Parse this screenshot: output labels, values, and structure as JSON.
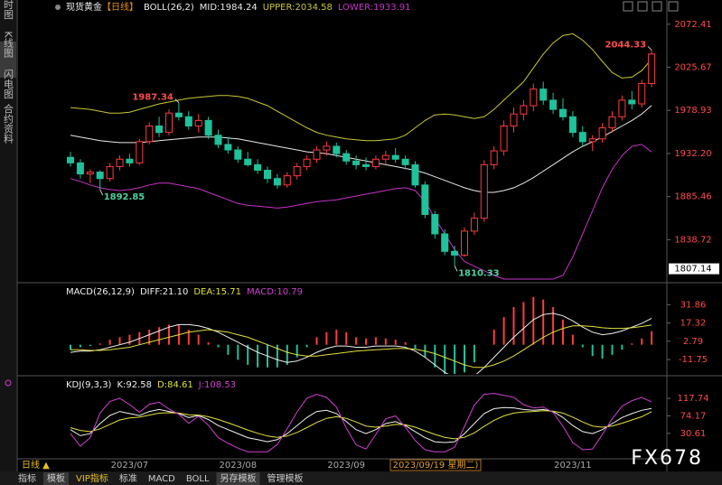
{
  "chart_data": [
    {
      "type": "candlestick",
      "title": "现货黄金",
      "period": "【日线】",
      "indicator": "BOLL(26,2)",
      "categories": [
        null,
        null,
        null,
        null,
        null,
        null,
        "2023/07",
        null,
        null,
        null,
        null,
        null,
        null,
        null,
        null,
        null,
        null,
        "2023/08",
        null,
        null,
        null,
        null,
        null,
        null,
        null,
        null,
        null,
        null,
        "2023/09",
        null,
        null,
        null,
        null,
        null,
        null,
        null,
        null,
        null,
        null,
        null,
        null,
        null,
        null,
        null,
        null,
        null,
        null,
        null,
        null,
        null,
        null,
        "2023/11",
        null,
        null,
        null,
        null,
        null,
        null,
        null,
        null
      ],
      "candles": [
        [
          1928,
          1934,
          1918,
          1922
        ],
        [
          1922,
          1926,
          1905,
          1910
        ],
        [
          1910,
          1915,
          1900,
          1912
        ],
        [
          1912,
          1914,
          1892.85,
          1905
        ],
        [
          1905,
          1922,
          1902,
          1918
        ],
        [
          1918,
          1930,
          1914,
          1926
        ],
        [
          1926,
          1932,
          1918,
          1922
        ],
        [
          1922,
          1948,
          1920,
          1945
        ],
        [
          1945,
          1966,
          1942,
          1962
        ],
        [
          1962,
          1972,
          1950,
          1955
        ],
        [
          1955,
          1980,
          1952,
          1976
        ],
        [
          1976,
          1987.34,
          1968,
          1972
        ],
        [
          1972,
          1978,
          1958,
          1962
        ],
        [
          1962,
          1975,
          1955,
          1968
        ],
        [
          1968,
          1972,
          1948,
          1952
        ],
        [
          1952,
          1958,
          1938,
          1942
        ],
        [
          1942,
          1950,
          1932,
          1936
        ],
        [
          1936,
          1940,
          1922,
          1926
        ],
        [
          1926,
          1934,
          1918,
          1920
        ],
        [
          1920,
          1926,
          1910,
          1914
        ],
        [
          1914,
          1918,
          1900,
          1905
        ],
        [
          1905,
          1910,
          1894,
          1898
        ],
        [
          1898,
          1912,
          1895,
          1908
        ],
        [
          1908,
          1922,
          1904,
          1918
        ],
        [
          1918,
          1930,
          1914,
          1926
        ],
        [
          1926,
          1940,
          1922,
          1936
        ],
        [
          1936,
          1945,
          1930,
          1940
        ],
        [
          1940,
          1944,
          1928,
          1932
        ],
        [
          1932,
          1936,
          1920,
          1924
        ],
        [
          1924,
          1930,
          1915,
          1920
        ],
        [
          1920,
          1928,
          1914,
          1918
        ],
        [
          1918,
          1930,
          1915,
          1926
        ],
        [
          1926,
          1935,
          1920,
          1930
        ],
        [
          1930,
          1938,
          1922,
          1926
        ],
        [
          1926,
          1930,
          1915,
          1920
        ],
        [
          1920,
          1924,
          1895,
          1898
        ],
        [
          1898,
          1902,
          1862,
          1866
        ],
        [
          1866,
          1870,
          1840,
          1845
        ],
        [
          1845,
          1850,
          1822,
          1826
        ],
        [
          1826,
          1832,
          1810.33,
          1822
        ],
        [
          1822,
          1852,
          1820,
          1848
        ],
        [
          1848,
          1868,
          1844,
          1862
        ],
        [
          1862,
          1925,
          1858,
          1920
        ],
        [
          1920,
          1940,
          1915,
          1935
        ],
        [
          1935,
          1968,
          1930,
          1962
        ],
        [
          1962,
          1982,
          1955,
          1975
        ],
        [
          1975,
          1990,
          1968,
          1984
        ],
        [
          1984,
          2008,
          1978,
          2002
        ],
        [
          2002,
          2010,
          1985,
          1990
        ],
        [
          1990,
          1998,
          1975,
          1980
        ],
        [
          1980,
          1992,
          1968,
          1972
        ],
        [
          1972,
          1978,
          1950,
          1955
        ],
        [
          1955,
          1962,
          1940,
          1945
        ],
        [
          1945,
          1952,
          1935,
          1948
        ],
        [
          1948,
          1965,
          1944,
          1960
        ],
        [
          1960,
          1978,
          1955,
          1972
        ],
        [
          1972,
          1995,
          1968,
          1990
        ],
        [
          1990,
          2000,
          1980,
          1986
        ],
        [
          1986,
          2012,
          1982,
          2008
        ],
        [
          2008,
          2044.33,
          2004,
          2040
        ]
      ],
      "up_color": "#ff3b3b",
      "down_color": "#1fc29a",
      "series": [
        {
          "name": "MID:1984.24",
          "color": "#e8e8e8",
          "values": [
            1952,
            1950,
            1948,
            1946,
            1945,
            1944,
            1944,
            1944,
            1945,
            1946,
            1947,
            1948,
            1949,
            1950,
            1950,
            1950,
            1949,
            1948,
            1946,
            1944,
            1942,
            1940,
            1938,
            1936,
            1934,
            1933,
            1932,
            1930,
            1928,
            1926,
            1924,
            1922,
            1920,
            1918,
            1916,
            1914,
            1911,
            1907,
            1903,
            1899,
            1895,
            1892,
            1890,
            1890,
            1892,
            1895,
            1900,
            1906,
            1913,
            1920,
            1927,
            1934,
            1940,
            1945,
            1950,
            1956,
            1962,
            1968,
            1975,
            1984.24
          ]
        },
        {
          "name": "UPPER:2034.58",
          "color": "#c8c832",
          "values": [
            1982,
            1981,
            1980,
            1978,
            1976,
            1976,
            1977,
            1980,
            1983,
            1986,
            1988,
            1990,
            1992,
            1993,
            1994,
            1995,
            1995,
            1994,
            1992,
            1988,
            1984,
            1978,
            1972,
            1966,
            1960,
            1955,
            1952,
            1950,
            1948,
            1947,
            1946,
            1946,
            1947,
            1948,
            1952,
            1960,
            1968,
            1974,
            1975,
            1974,
            1972,
            1970,
            1972,
            1980,
            1990,
            2000,
            2010,
            2025,
            2040,
            2052,
            2060,
            2062,
            2055,
            2045,
            2032,
            2020,
            2014,
            2015,
            2022,
            2034.58
          ]
        },
        {
          "name": "LOWER:1933.91",
          "color": "#c832c8",
          "values": [
            1905,
            1902,
            1898,
            1895,
            1893,
            1892,
            1893,
            1895,
            1898,
            1900,
            1900,
            1898,
            1896,
            1894,
            1890,
            1886,
            1882,
            1878,
            1876,
            1875,
            1874,
            1873,
            1874,
            1876,
            1878,
            1880,
            1881,
            1882,
            1884,
            1886,
            1888,
            1890,
            1892,
            1894,
            1895,
            1892,
            1880,
            1862,
            1845,
            1828,
            1815,
            1810,
            1805,
            1800,
            1796,
            1796,
            1796,
            1796,
            1796,
            1796,
            1800,
            1820,
            1845,
            1870,
            1895,
            1915,
            1930,
            1940,
            1942,
            1933.91
          ]
        }
      ],
      "ylim": [
        1795,
        2081
      ],
      "yticks": [
        2072.41,
        2025.67,
        1978.93,
        {
          "value": 1932.2,
          "label": "1932.20"
        },
        1885.46,
        1838.72
      ],
      "tick_color": "#ff4b4b",
      "extreme_labels": [
        {
          "candle": 59,
          "value": 2044.33,
          "label": "2044.33",
          "color": "#ff4b4b"
        },
        {
          "candle": 11,
          "value": 1987.34,
          "label": "1987.34",
          "color": "#ff4b4b"
        },
        {
          "candle": 3,
          "value": 1892.85,
          "label": "1892.85",
          "color": "#4fd0a0"
        },
        {
          "candle": 39,
          "value": 1810.33,
          "label": "1810.33",
          "color": "#4fd0a0"
        }
      ],
      "ymarker": 1807.14
    },
    {
      "type": "macd",
      "title": "MACD(26,12,9)",
      "histogram": {
        "name": "MACD:10.79",
        "color": "#d040d0",
        "up_color": "#ff3b3b",
        "down_color": "#1fc29a",
        "values": [
          -4,
          -2,
          -1,
          1,
          4,
          6,
          8,
          10,
          12,
          14,
          16,
          16,
          12,
          8,
          2,
          -2,
          -8,
          -12,
          -16,
          -18,
          -18,
          -18,
          -16,
          -10,
          -2,
          6,
          10,
          12,
          10,
          6,
          5,
          6,
          5,
          4,
          2,
          -3,
          -10,
          -18,
          -24,
          -26,
          -22,
          -14,
          0,
          12,
          22,
          30,
          34,
          38,
          36,
          30,
          20,
          8,
          -2,
          -9,
          -11,
          -8,
          -4,
          1,
          5,
          10.79
        ]
      },
      "series": [
        {
          "name": "DIFF:21.10",
          "color": "#f0f0f0",
          "values": [
            -6,
            -5,
            -5,
            -4,
            -2,
            0,
            2,
            5,
            8,
            11,
            14,
            16,
            16,
            15,
            13,
            10,
            6,
            2,
            -2,
            -6,
            -9,
            -12,
            -14,
            -13,
            -10,
            -6,
            -3,
            -1,
            -1,
            -2,
            -2,
            -1,
            -1,
            -1,
            -2,
            -5,
            -10,
            -16,
            -22,
            -26,
            -27,
            -25,
            -18,
            -10,
            -2,
            6,
            13,
            20,
            24,
            25,
            23,
            19,
            14,
            10,
            8,
            9,
            11,
            14,
            17,
            21.1
          ]
        },
        {
          "name": "DEA:15.71",
          "color": "#e0e03a",
          "values": [
            -4,
            -4,
            -4.5,
            -4.5,
            -4,
            -3,
            -2,
            0,
            2,
            4,
            6,
            8,
            10,
            11,
            12,
            11,
            10,
            8,
            6,
            3,
            0,
            -3,
            -6,
            -8,
            -9,
            -9,
            -8,
            -7,
            -6,
            -5,
            -4.5,
            -4,
            -3.5,
            -3,
            -3,
            -3.5,
            -5,
            -7,
            -10,
            -13,
            -16,
            -18,
            -18,
            -16,
            -13,
            -9,
            -4,
            1,
            6,
            10,
            13,
            15,
            15,
            14.5,
            13.5,
            13,
            13,
            13.5,
            14.5,
            15.71
          ]
        }
      ],
      "ylim": [
        -23.2,
        38.6
      ],
      "yticks": [
        31.86,
        17.32,
        2.79,
        -11.75
      ],
      "tick_color": "#ff4b4b"
    },
    {
      "type": "line",
      "title": "KDJ(9,3,3)",
      "series": [
        {
          "name": "K:92.58",
          "color": "#f0f0f0",
          "values": [
            40,
            25,
            30,
            55,
            75,
            85,
            80,
            75,
            85,
            90,
            85,
            80,
            70,
            75,
            65,
            50,
            40,
            30,
            20,
            15,
            10,
            15,
            30,
            50,
            70,
            85,
            88,
            80,
            60,
            40,
            30,
            40,
            55,
            60,
            50,
            35,
            20,
            10,
            8,
            10,
            30,
            55,
            80,
            92,
            95,
            94,
            90,
            88,
            90,
            85,
            70,
            50,
            35,
            30,
            40,
            55,
            70,
            80,
            88,
            92.58
          ]
        },
        {
          "name": "D:84.61",
          "color": "#e0e03a",
          "values": [
            45,
            38,
            35,
            42,
            53,
            64,
            69,
            71,
            76,
            81,
            82,
            81,
            77,
            76,
            72,
            65,
            57,
            48,
            39,
            31,
            24,
            21,
            24,
            33,
            45,
            58,
            68,
            72,
            68,
            59,
            49,
            46,
            49,
            53,
            52,
            46,
            37,
            28,
            21,
            17,
            21,
            32,
            48,
            63,
            74,
            81,
            84,
            85,
            87,
            86,
            81,
            71,
            59,
            49,
            46,
            49,
            56,
            64,
            72,
            84.61
          ]
        },
        {
          "name": "J:108.53",
          "color": "#d040d0",
          "values": [
            30,
            -1,
            20,
            81,
            110,
            118,
            102,
            83,
            103,
            108,
            91,
            78,
            56,
            73,
            51,
            20,
            6,
            -6,
            -15,
            -15,
            -15,
            3,
            42,
            84,
            118,
            128,
            120,
            96,
            44,
            2,
            -8,
            28,
            67,
            74,
            46,
            13,
            -10,
            -15,
            -15,
            -4,
            48,
            101,
            128,
            130,
            125,
            120,
            102,
            94,
            96,
            83,
            48,
            8,
            -10,
            -8,
            28,
            67,
            98,
            112,
            120,
            108.53
          ]
        }
      ],
      "ylim": [
        -28,
        138
      ],
      "yticks": [
        117.74,
        74.17,
        30.61
      ],
      "tick_color": "#ff4b4b"
    }
  ],
  "sidebar": [
    "分时图",
    "K线图",
    "闪电图",
    "合约资料"
  ],
  "period_button": "日线 ▲",
  "cursor_label": "2023/09/19 星期二)",
  "tabs": [
    "指标",
    "模板",
    "VIP指标",
    "标准",
    "MACD",
    "BOLL",
    "另存模板",
    "管理模板"
  ],
  "watermark": "FX678"
}
